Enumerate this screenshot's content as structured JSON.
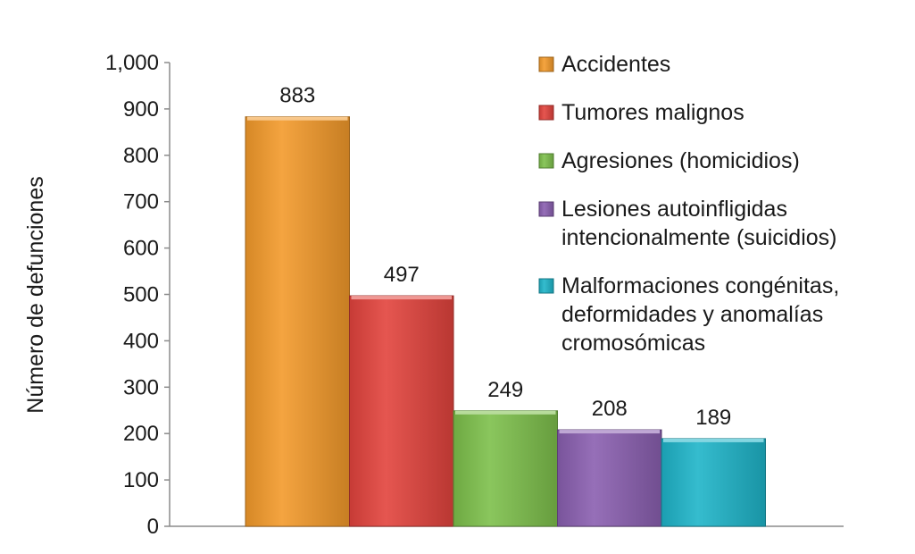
{
  "chart_data": {
    "type": "bar",
    "ylabel": "Número de defunciones",
    "ylim": [
      0,
      1000
    ],
    "yticks": [
      "0",
      "100",
      "200",
      "300",
      "400",
      "500",
      "600",
      "700",
      "800",
      "900",
      "1,000"
    ],
    "grid": false,
    "legend_position": "right",
    "series": [
      {
        "name": "Accidentes",
        "legend_lines": [
          "Accidentes"
        ],
        "value": 883,
        "label": "883",
        "color": "#f39a2b"
      },
      {
        "name": "Tumores malignos",
        "legend_lines": [
          "Tumores malignos"
        ],
        "value": 497,
        "label": "497",
        "color": "#e2433d"
      },
      {
        "name": "Agresiones (homicidios)",
        "legend_lines": [
          "Agresiones (homicidios)"
        ],
        "value": 249,
        "label": "249",
        "color": "#7dc04b"
      },
      {
        "name": "Lesiones autoinfligidas intencionalmente (suicidios)",
        "legend_lines": [
          "Lesiones autoinfligidas",
          "intencionalmente (suicidios)"
        ],
        "value": 208,
        "label": "208",
        "color": "#8a5fb0"
      },
      {
        "name": "Malformaciones congénitas, deformidades y anomalías cromosómicas",
        "legend_lines": [
          "Malformaciones congénitas,",
          "deformidades y anomalías",
          "cromosómicas"
        ],
        "value": 189,
        "label": "189",
        "color": "#1fb4c9"
      }
    ]
  }
}
